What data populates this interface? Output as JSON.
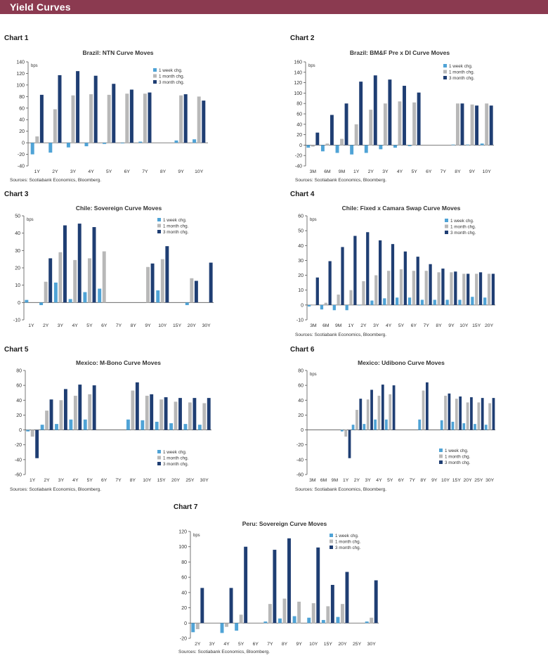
{
  "page": {
    "title": "Yield Curves"
  },
  "colors": {
    "header": "#8b3a50",
    "week": "#4fa3d6",
    "month": "#b8b8b8",
    "three_month": "#1f3e73"
  },
  "chart_data": [
    {
      "label": "Chart 1",
      "type": "bar",
      "title": "Brazil: NTN Curve Moves",
      "unit": "bps",
      "categories": [
        "1Y",
        "2Y",
        "3Y",
        "4Y",
        "5Y",
        "6Y",
        "7Y",
        "8Y",
        "9Y",
        "10Y"
      ],
      "ylim": [
        -40,
        140
      ],
      "yticks": [
        -40,
        -20,
        0,
        20,
        40,
        60,
        80,
        100,
        120,
        140
      ],
      "legend": "top-right",
      "series": [
        {
          "name": "1 week chg.",
          "values": [
            -20,
            -17,
            -8,
            -6,
            -2,
            -1,
            2,
            null,
            4,
            6
          ]
        },
        {
          "name": "1 month chg.",
          "values": [
            11,
            58,
            82,
            84,
            83,
            85,
            85,
            null,
            82,
            80
          ]
        },
        {
          "name": "3 month chg.",
          "values": [
            83,
            117,
            124,
            116,
            102,
            92,
            87,
            null,
            84,
            73
          ]
        }
      ],
      "sources": "Sources: Scotiabank Economics, Bloomberg."
    },
    {
      "label": "Chart 2",
      "type": "bar",
      "title": "Brazil: BM&F Pre x DI Curve Moves",
      "unit": "bps",
      "categories": [
        "3M",
        "6M",
        "9M",
        "1Y",
        "2Y",
        "3Y",
        "4Y",
        "5Y",
        "6Y",
        "7Y",
        "8Y",
        "9Y",
        "10Y"
      ],
      "ylim": [
        -40,
        160
      ],
      "yticks": [
        -40,
        -20,
        0,
        20,
        40,
        60,
        80,
        100,
        120,
        140,
        160
      ],
      "legend": "top-right",
      "series": [
        {
          "name": "1 week chg.",
          "values": [
            -5,
            -12,
            -15,
            -18,
            -15,
            -8,
            -5,
            -2,
            null,
            null,
            1,
            1,
            3
          ]
        },
        {
          "name": "1 month chg.",
          "values": [
            -3,
            3,
            12,
            40,
            68,
            80,
            84,
            82,
            null,
            null,
            80,
            78,
            80
          ]
        },
        {
          "name": "3 month chg.",
          "values": [
            24,
            58,
            80,
            122,
            134,
            126,
            114,
            101,
            null,
            null,
            80,
            76,
            76
          ]
        }
      ],
      "sources": "Sources: Scotiabank Economics, Bloomberg."
    },
    {
      "label": "Chart 3",
      "type": "bar",
      "title": "Chile: Sovereign Curve Moves",
      "unit": "bps",
      "categories": [
        "1Y",
        "2Y",
        "3Y",
        "4Y",
        "5Y",
        "6Y",
        "7Y",
        "8Y",
        "9Y",
        "10Y",
        "15Y",
        "20Y",
        "30Y"
      ],
      "ylim": [
        -10,
        50
      ],
      "yticks": [
        -10,
        0,
        10,
        20,
        30,
        40,
        50
      ],
      "legend": "top-right",
      "series": [
        {
          "name": "1 week chg.",
          "values": [
            1.5,
            -1.5,
            11.5,
            2,
            6,
            8,
            null,
            null,
            null,
            7,
            null,
            -1.5,
            null
          ]
        },
        {
          "name": "1 month chg.",
          "values": [
            null,
            12,
            29,
            24.5,
            25.5,
            29.5,
            null,
            null,
            20.5,
            25,
            null,
            14,
            null
          ]
        },
        {
          "name": "3 month chg.",
          "values": [
            null,
            25.5,
            44.5,
            45.5,
            43.5,
            null,
            null,
            null,
            22.5,
            32.5,
            null,
            12.5,
            23
          ]
        }
      ],
      "sources": ""
    },
    {
      "label": "Chart 4",
      "type": "bar",
      "title": "Chile: Fixed x Camara Swap Curve Moves",
      "unit": "bps",
      "categories": [
        "3M",
        "6M",
        "9M",
        "1Y",
        "2Y",
        "3Y",
        "4Y",
        "5Y",
        "6Y",
        "7Y",
        "8Y",
        "9Y",
        "10Y",
        "15Y",
        "20Y"
      ],
      "ylim": [
        -10,
        60
      ],
      "yticks": [
        -10,
        0,
        10,
        20,
        30,
        40,
        50,
        60
      ],
      "legend": "top-right",
      "series": [
        {
          "name": "1 week chg.",
          "values": [
            -1,
            -3,
            -3.5,
            -3.5,
            0,
            3,
            4.5,
            5,
            5,
            3.5,
            3.5,
            3.5,
            3.5,
            5.5,
            5
          ]
        },
        {
          "name": "1 month chg.",
          "values": [
            0,
            1.5,
            7,
            10,
            16,
            20,
            23,
            24,
            23,
            23,
            22,
            22,
            21,
            21,
            21
          ]
        },
        {
          "name": "3 month chg.",
          "values": [
            18.5,
            29.5,
            39,
            46.5,
            49,
            43.5,
            41,
            36,
            32.5,
            27.5,
            24.5,
            22.5,
            21,
            22,
            21
          ]
        }
      ],
      "sources": "Sources: Scotiabank Economics, Bloomberg."
    },
    {
      "label": "Chart 5",
      "type": "bar",
      "title": "Mexico: M-Bono Curve Moves",
      "unit": "",
      "categories": [
        "1Y",
        "2Y",
        "3Y",
        "4Y",
        "5Y",
        "6Y",
        "7Y",
        "8Y",
        "10Y",
        "15Y",
        "20Y",
        "25Y",
        "30Y"
      ],
      "ylim": [
        -60,
        80
      ],
      "yticks": [
        -60,
        -40,
        -20,
        0,
        20,
        40,
        60,
        80
      ],
      "legend": "bottom-right",
      "series": [
        {
          "name": "1 week chg.",
          "values": [
            -2,
            7,
            8,
            14,
            14,
            null,
            null,
            14,
            13,
            11,
            9,
            8,
            7
          ]
        },
        {
          "name": "1 month chg.",
          "values": [
            -9,
            26,
            40,
            46,
            48,
            null,
            null,
            53,
            46,
            41,
            38,
            37,
            36
          ]
        },
        {
          "name": "3 month chg.",
          "values": [
            -38,
            41,
            55,
            61,
            60,
            null,
            null,
            64,
            48,
            44,
            43,
            43,
            43
          ]
        }
      ],
      "sources": "Sources: Scotiabank Economics, Bloomberg."
    },
    {
      "label": "Chart 6",
      "type": "bar",
      "title": "Mexico: Udibono Curve Moves",
      "unit": "bps",
      "categories": [
        "3M",
        "6M",
        "9M",
        "1Y",
        "2Y",
        "3Y",
        "4Y",
        "5Y",
        "6Y",
        "7Y",
        "8Y",
        "9Y",
        "10Y",
        "15Y",
        "20Y",
        "25Y",
        "30Y"
      ],
      "ylim": [
        -60,
        80
      ],
      "yticks": [
        -60,
        -40,
        -20,
        0,
        20,
        40,
        60,
        80
      ],
      "legend": "bottom-right",
      "series": [
        {
          "name": "1 week chg.",
          "values": [
            null,
            null,
            null,
            -2,
            7,
            8,
            14,
            14,
            null,
            null,
            14,
            null,
            13,
            11,
            9,
            8,
            7
          ]
        },
        {
          "name": "1 month chg.",
          "values": [
            null,
            null,
            null,
            -9,
            27,
            41,
            46,
            48,
            null,
            null,
            53,
            null,
            46,
            42,
            37,
            37,
            36
          ]
        },
        {
          "name": "3 month chg.",
          "values": [
            null,
            null,
            null,
            -38,
            42,
            54,
            61,
            60,
            null,
            null,
            64,
            null,
            49,
            45,
            44,
            43,
            43
          ]
        }
      ],
      "sources": "Sources: Scotiabank Economics, Bloomberg."
    },
    {
      "label": "Chart 7",
      "type": "bar",
      "title": "Peru: Sovereign Curve Moves",
      "unit": "bps",
      "categories": [
        "2Y",
        "3Y",
        "4Y",
        "5Y",
        "6Y",
        "7Y",
        "8Y",
        "9Y",
        "10Y",
        "15Y",
        "20Y",
        "25Y",
        "30Y"
      ],
      "ylim": [
        -20,
        120
      ],
      "yticks": [
        -20,
        0,
        20,
        40,
        60,
        80,
        100,
        120
      ],
      "legend": "top-right",
      "series": [
        {
          "name": "1 week chg.",
          "values": [
            -12,
            null,
            -13,
            -10,
            null,
            2,
            6,
            9,
            7,
            4,
            8,
            null,
            2
          ]
        },
        {
          "name": "1 month chg.",
          "values": [
            -8,
            null,
            -5,
            11,
            null,
            25,
            32,
            28,
            26,
            22,
            25,
            null,
            7
          ]
        },
        {
          "name": "3 month chg.",
          "values": [
            46,
            null,
            46,
            100,
            null,
            96,
            111,
            null,
            99,
            50,
            67,
            null,
            56
          ]
        }
      ],
      "sources": "Sources: Scotiabank Economics, Bloomberg."
    }
  ]
}
